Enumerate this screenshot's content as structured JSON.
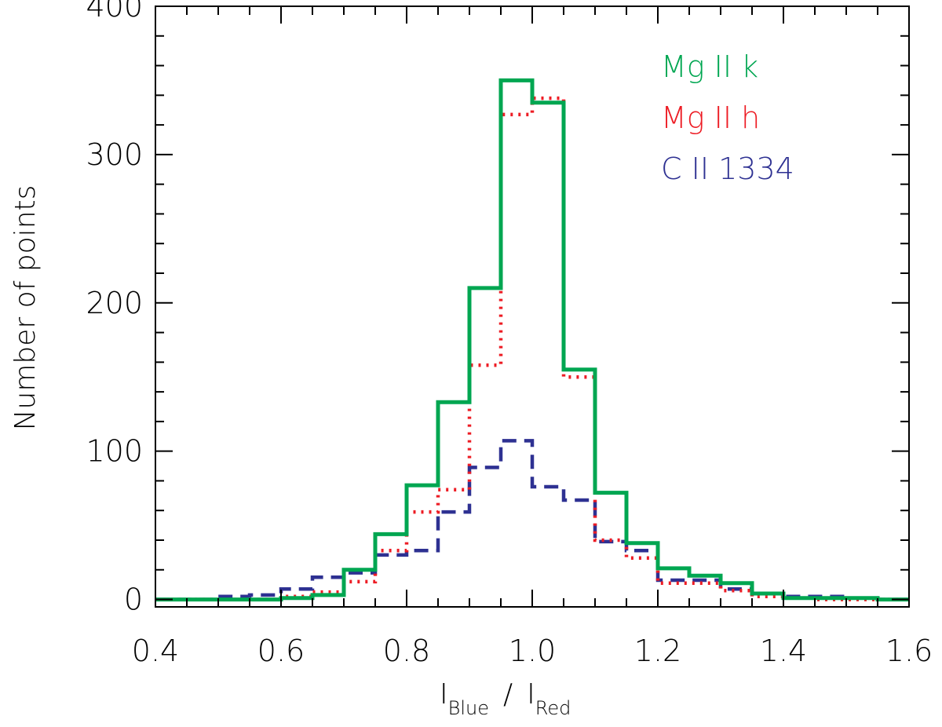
{
  "chart_data": {
    "type": "line",
    "title": "",
    "xlabel_main_1": "I",
    "xlabel_sub_1": "Blue",
    "xlabel_slash": "/",
    "xlabel_main_2": "I",
    "xlabel_sub_2": "Red",
    "ylabel": "Number of points",
    "xlim": [
      0.4,
      1.6
    ],
    "ylim": [
      -5,
      400
    ],
    "x_ticks": [
      "0.4",
      "0.6",
      "0.8",
      "1.0",
      "1.2",
      "1.4",
      "1.6"
    ],
    "y_ticks": [
      "0",
      "100",
      "200",
      "300",
      "400"
    ],
    "legend_position": "top-right",
    "bin_edges": [
      0.4,
      0.45,
      0.5,
      0.55,
      0.6,
      0.65,
      0.7,
      0.75,
      0.8,
      0.85,
      0.9,
      0.95,
      1.0,
      1.05,
      1.1,
      1.15,
      1.2,
      1.25,
      1.3,
      1.35,
      1.4,
      1.45,
      1.5,
      1.55,
      1.6
    ],
    "series": [
      {
        "name": "Mg II k",
        "color": "#00a651",
        "style": "solid",
        "values": [
          0,
          0,
          0,
          0,
          1,
          3,
          20,
          44,
          77,
          133,
          210,
          350,
          335,
          155,
          72,
          38,
          21,
          16,
          11,
          4,
          1,
          1,
          1,
          0
        ]
      },
      {
        "name": "Mg II h",
        "color": "#ed1c24",
        "style": "dotted",
        "values": [
          0,
          0,
          0,
          0,
          2,
          5,
          12,
          33,
          59,
          74,
          158,
          327,
          338,
          150,
          40,
          28,
          11,
          11,
          6,
          2,
          1,
          0,
          0,
          0
        ]
      },
      {
        "name": "C II 1334",
        "color": "#2e3192",
        "style": "dashed",
        "values": [
          0,
          0,
          2,
          3,
          7,
          15,
          18,
          30,
          33,
          59,
          89,
          107,
          76,
          67,
          39,
          33,
          13,
          13,
          7,
          4,
          2,
          2,
          1,
          0
        ]
      }
    ]
  }
}
